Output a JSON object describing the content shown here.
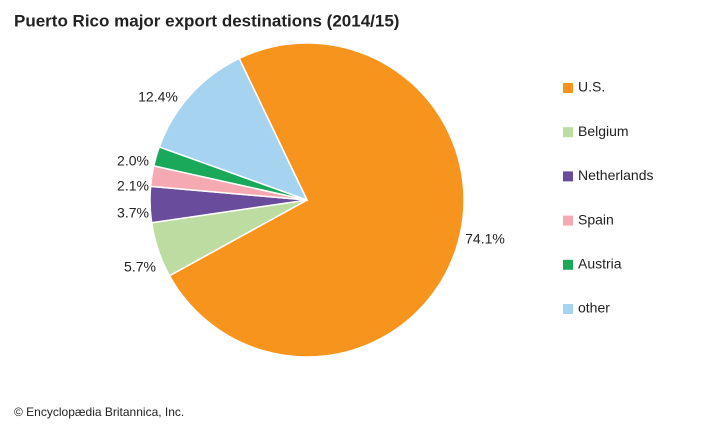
{
  "chart_data": {
    "type": "pie",
    "title": "Puerto Rico major export destinations (2014/15)",
    "categories": [
      "U.S.",
      "Belgium",
      "Netherlands",
      "Spain",
      "Austria",
      "other"
    ],
    "values": [
      74.1,
      5.7,
      3.7,
      2.1,
      2.0,
      12.4
    ],
    "value_labels": [
      "74.1%",
      "5.7%",
      "3.7%",
      "2.1%",
      "2.0%",
      "12.4%"
    ],
    "colors": [
      "#f7941d",
      "#bcdca2",
      "#6a4c9c",
      "#f5a9b2",
      "#1aa85a",
      "#a6d3ef"
    ],
    "legend": "right",
    "credit": "© Encyclopædia Britannica, Inc."
  }
}
